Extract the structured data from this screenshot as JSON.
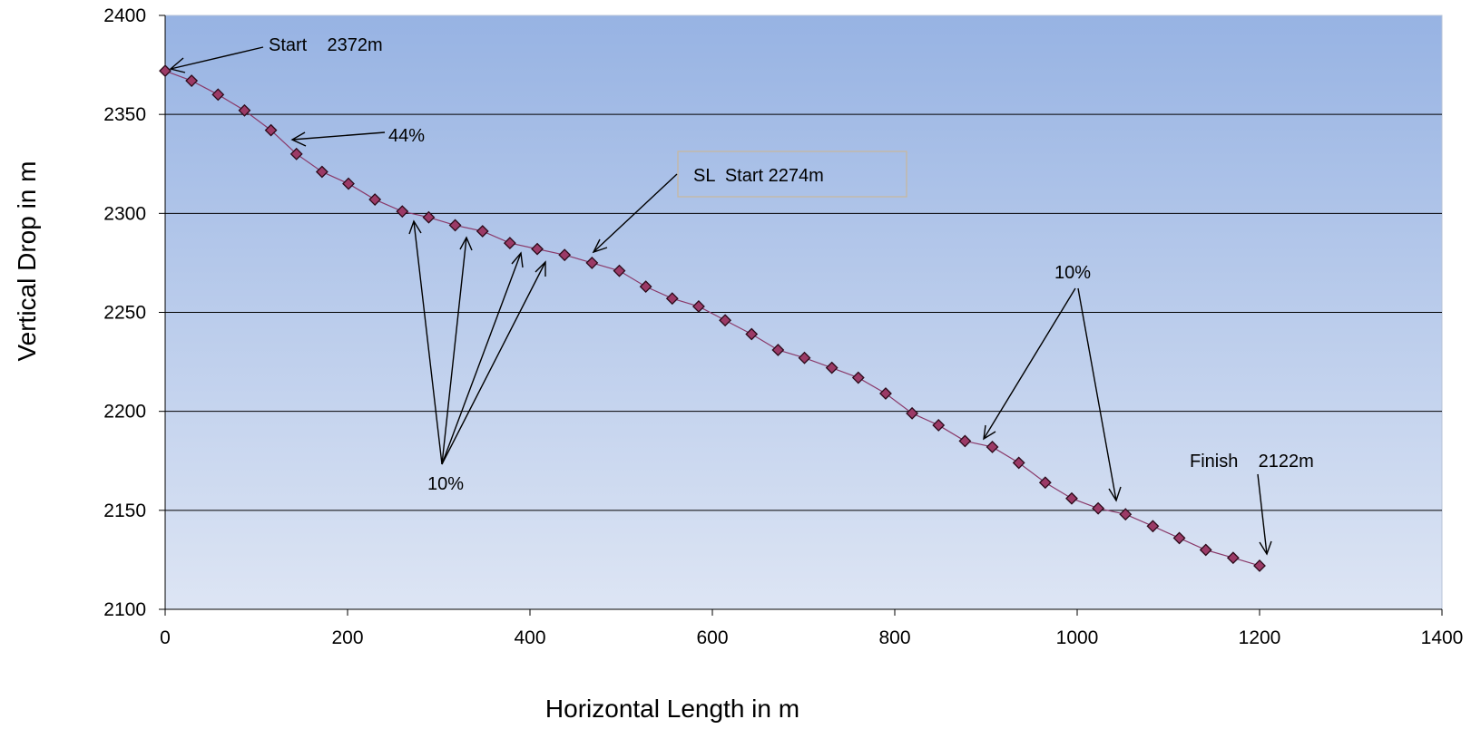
{
  "chart_data": {
    "type": "line",
    "title": "",
    "xlabel": "Horizontal Length in m",
    "ylabel": "Vertical Drop in m",
    "xlim": [
      0,
      1400
    ],
    "ylim": [
      2100,
      2400
    ],
    "x_ticks": [
      "0",
      "200",
      "400",
      "600",
      "800",
      "1000",
      "1200",
      "1400"
    ],
    "y_ticks": [
      "2100",
      "2150",
      "2200",
      "2250",
      "2300",
      "2350",
      "2400"
    ],
    "grid": "horizontal",
    "background": {
      "top": "#97b3e3",
      "bottom": "#dde5f4"
    },
    "series_color": "#9b3a66",
    "series": [
      {
        "x": [
          0,
          29,
          58,
          87,
          116,
          144,
          172,
          201,
          230,
          260,
          289,
          318,
          348,
          378,
          408,
          438,
          468,
          498,
          527,
          556,
          585,
          614,
          643,
          672,
          701,
          731,
          760,
          790,
          819,
          848,
          877,
          907,
          936,
          965,
          994,
          1023,
          1053,
          1083,
          1112,
          1141,
          1171,
          1200
        ],
        "y": [
          2372,
          2367,
          2360,
          2352,
          2342,
          2330,
          2321,
          2315,
          2307,
          2301,
          2298,
          2294,
          2291,
          2285,
          2282,
          2279,
          2275,
          2271,
          2263,
          2257,
          2253,
          2246,
          2239,
          2231,
          2227,
          2222,
          2217,
          2209,
          2199,
          2193,
          2185,
          2182,
          2174,
          2164,
          2156,
          2151,
          2148,
          2142,
          2136,
          2130,
          2126,
          2122
        ]
      }
    ],
    "annotations": [
      {
        "text": "Start    2372m"
      },
      {
        "text": "44%"
      },
      {
        "text": "SL  Start 2274m"
      },
      {
        "text": "10%"
      },
      {
        "text": "10%"
      },
      {
        "text": "Finish    2122m"
      }
    ]
  }
}
